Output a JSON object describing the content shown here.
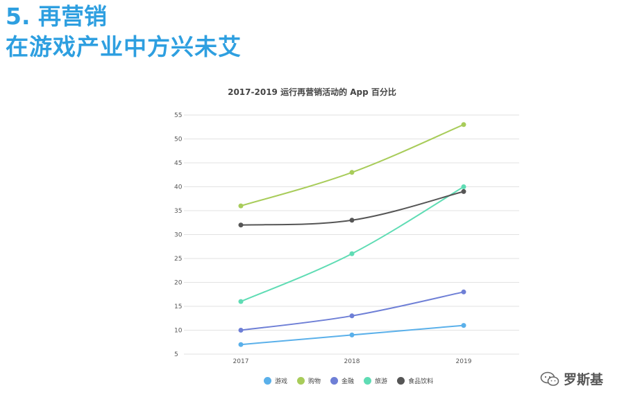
{
  "header": {
    "title": "5. 再营销",
    "subtitle": "在游戏产业中方兴未艾"
  },
  "watermark": {
    "icon": "wechat-icon",
    "text": "罗斯基"
  },
  "chart_data": {
    "type": "line",
    "title": "2017-2019 运行再营销活动的 App 百分比",
    "categories": [
      "2017",
      "2018",
      "2019"
    ],
    "yticks": [
      "55",
      "50",
      "45",
      "40",
      "35",
      "30",
      "25",
      "20",
      "15",
      "10",
      "5"
    ],
    "ylim": [
      5,
      55
    ],
    "grid": true,
    "legend_position": "bottom",
    "series": [
      {
        "name": "游戏",
        "color": "#5ab0ea",
        "values": [
          7,
          9,
          11
        ]
      },
      {
        "name": "购物",
        "color": "#a8cc5a",
        "values": [
          36,
          43,
          53
        ]
      },
      {
        "name": "金融",
        "color": "#6e7fd6",
        "values": [
          10,
          13,
          18
        ]
      },
      {
        "name": "旅游",
        "color": "#5fdcb4",
        "values": [
          16,
          26,
          40
        ]
      },
      {
        "name": "食品饮料",
        "color": "#555555",
        "values": [
          32,
          33,
          39
        ]
      }
    ]
  }
}
